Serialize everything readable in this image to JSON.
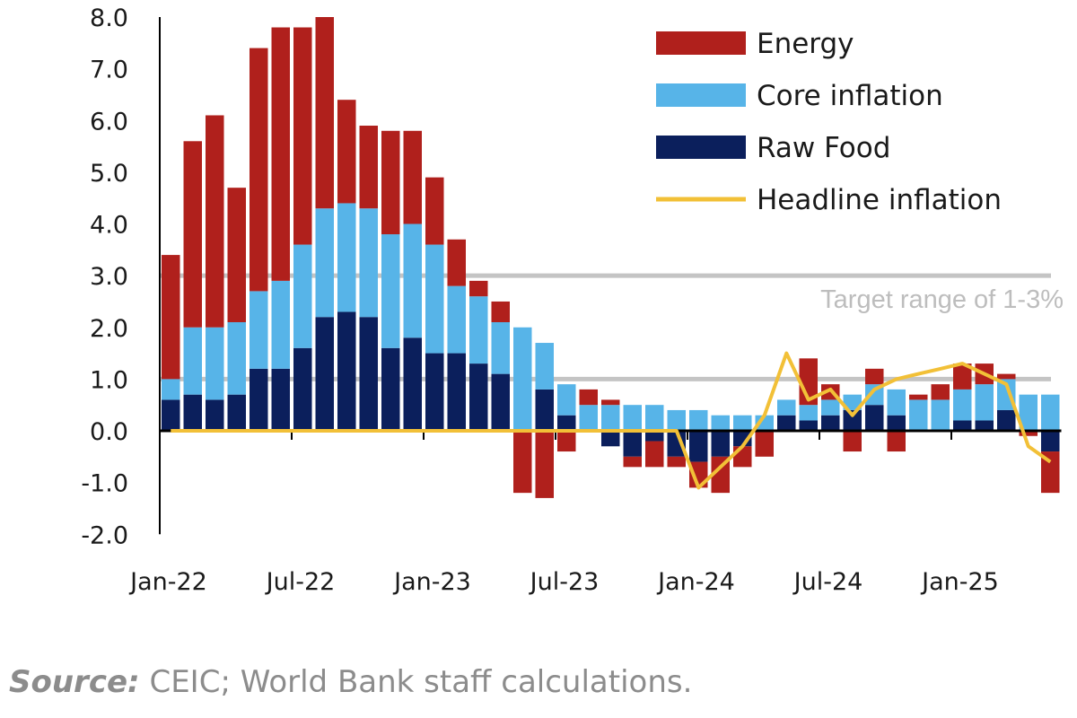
{
  "chart_data": {
    "type": "bar",
    "stacked": true,
    "ylim": [
      -2.0,
      8.0
    ],
    "yticks": [
      "8.0",
      "7.0",
      "6.0",
      "5.0",
      "4.0",
      "3.0",
      "2.0",
      "1.0",
      "0.0",
      "-1.0",
      "-2.0"
    ],
    "ytick_values": [
      8,
      7,
      6,
      5,
      4,
      3,
      2,
      1,
      0,
      -1,
      -2
    ],
    "xtick_labels": [
      {
        "label": "Jan-22",
        "index": 0
      },
      {
        "label": "Jul-22",
        "index": 6
      },
      {
        "label": "Jan-23",
        "index": 12
      },
      {
        "label": "Jul-23",
        "index": 18
      },
      {
        "label": "Jan-24",
        "index": 24
      },
      {
        "label": "Jul-24",
        "index": 30
      },
      {
        "label": "Jan-25",
        "index": 36
      }
    ],
    "months": [
      "Jan-22",
      "Feb-22",
      "Mar-22",
      "Apr-22",
      "May-22",
      "Jun-22",
      "Jul-22",
      "Aug-22",
      "Sep-22",
      "Oct-22",
      "Nov-22",
      "Dec-22",
      "Jan-23",
      "Feb-23",
      "Mar-23",
      "Apr-23",
      "May-23",
      "Jun-23",
      "Jul-23",
      "Aug-23",
      "Sep-23",
      "Oct-23",
      "Nov-23",
      "Dec-23",
      "Jan-24",
      "Feb-24",
      "Mar-24",
      "Apr-24",
      "May-24",
      "Jun-24",
      "Jul-24",
      "Aug-24",
      "Sep-24",
      "Oct-24",
      "Nov-24",
      "Dec-24",
      "Jan-25",
      "Feb-25",
      "Mar-25",
      "Apr-25",
      "May-25"
    ],
    "series": [
      {
        "name": "Raw Food",
        "color": "#0b1f5c",
        "values": [
          0.6,
          0.7,
          0.6,
          0.7,
          1.2,
          1.2,
          1.6,
          2.2,
          2.3,
          2.2,
          1.6,
          1.8,
          1.5,
          1.5,
          1.3,
          1.1,
          0.0,
          0.8,
          0.3,
          0.0,
          -0.3,
          -0.5,
          -0.2,
          -0.5,
          -0.6,
          -0.5,
          -0.3,
          0.0,
          0.3,
          0.2,
          0.3,
          0.4,
          0.5,
          0.3,
          0.0,
          0.0,
          0.2,
          0.2,
          0.4,
          0.0,
          -0.4
        ]
      },
      {
        "name": "Core inflation",
        "color": "#57b4e8",
        "values": [
          0.4,
          1.3,
          1.4,
          1.4,
          1.5,
          1.7,
          2.0,
          2.1,
          2.1,
          2.1,
          2.2,
          2.2,
          2.1,
          1.3,
          1.3,
          1.0,
          2.0,
          0.9,
          0.6,
          0.5,
          0.5,
          0.5,
          0.5,
          0.4,
          0.4,
          0.3,
          0.3,
          0.3,
          0.3,
          0.3,
          0.3,
          0.3,
          0.4,
          0.5,
          0.6,
          0.6,
          0.6,
          0.7,
          0.6,
          0.7,
          0.7
        ]
      },
      {
        "name": "Energy",
        "color": "#b0201c",
        "values": [
          2.4,
          3.6,
          4.1,
          2.6,
          4.7,
          4.9,
          4.2,
          3.7,
          2.0,
          1.6,
          2.0,
          1.8,
          1.3,
          0.9,
          0.3,
          0.4,
          -1.2,
          -1.3,
          -0.4,
          0.3,
          0.1,
          -0.2,
          -0.5,
          -0.2,
          -0.5,
          -0.7,
          -0.4,
          -0.5,
          0.0,
          0.9,
          0.3,
          -0.4,
          0.3,
          -0.4,
          0.1,
          0.3,
          0.5,
          0.4,
          0.1,
          -0.1,
          -0.8
        ]
      }
    ],
    "headline": {
      "name": "Headline inflation",
      "color": "#f2c037",
      "values": [
        0.0,
        0.0,
        0.0,
        0.0,
        0.0,
        0.0,
        0.0,
        0.0,
        0.0,
        0.0,
        0.0,
        0.0,
        0.0,
        0.0,
        0.0,
        0.0,
        0.0,
        0.0,
        0.0,
        0.0,
        0.0,
        0.0,
        0.0,
        0.0,
        -1.1,
        -0.7,
        -0.3,
        0.3,
        1.5,
        0.6,
        0.8,
        0.3,
        0.8,
        1.0,
        1.1,
        1.2,
        1.3,
        1.1,
        0.9,
        -0.3,
        -0.6
      ]
    },
    "reference_lines": [
      3.0,
      1.0
    ],
    "legend": [
      {
        "label": "Energy",
        "color": "#b0201c",
        "kind": "bar"
      },
      {
        "label": "Core inflation",
        "color": "#57b4e8",
        "kind": "bar"
      },
      {
        "label": "Raw Food",
        "color": "#0b1f5c",
        "kind": "bar"
      },
      {
        "label": "Headline inflation",
        "color": "#f2c037",
        "kind": "line"
      }
    ],
    "annotation": "Target range of 1-3%"
  },
  "source": {
    "label": "Source:",
    "text": " CEIC; World Bank staff calculations."
  }
}
